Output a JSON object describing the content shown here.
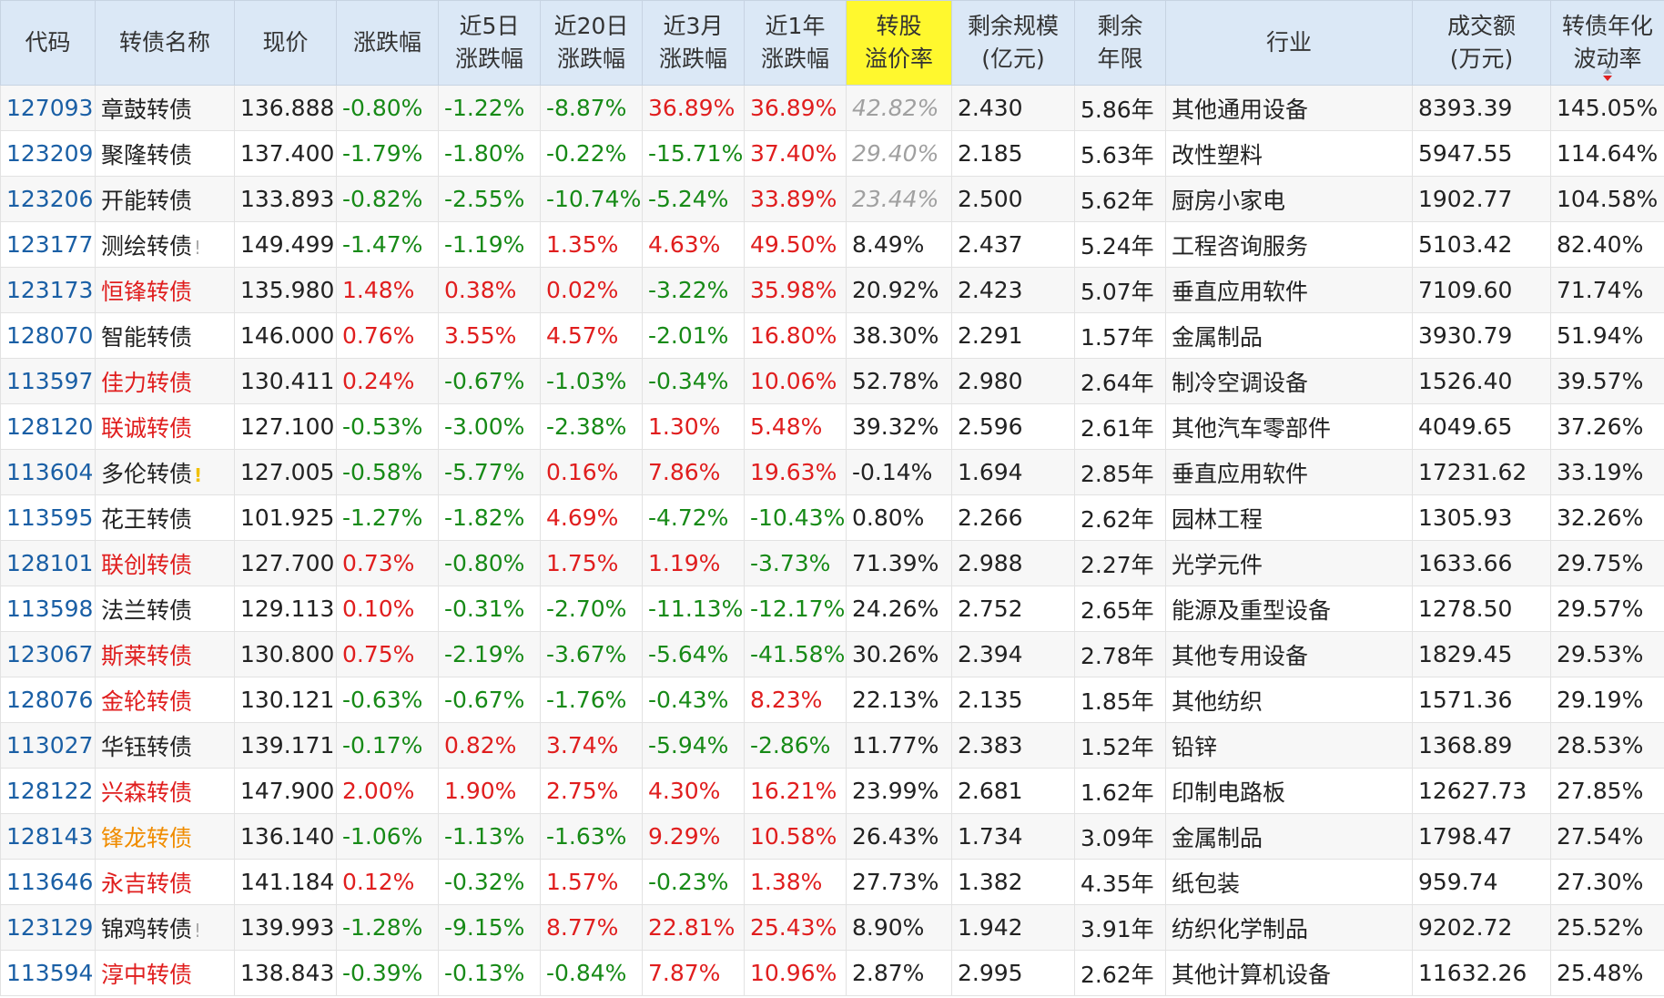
{
  "headers": [
    "代码",
    "转债名称",
    "现价",
    "涨跌幅",
    "近5日\n涨跌幅",
    "近20日\n涨跌幅",
    "近3月\n涨跌幅",
    "近1年\n涨跌幅",
    "转股\n溢价率",
    "剩余规模\n(亿元)",
    "剩余\n年限",
    "行业",
    "成交额\n(万元)",
    "转债年化\n波动率"
  ],
  "colors": {
    "up": "#e01e1e",
    "down": "#178a17",
    "header_bg": "#dbe8f6",
    "highlight": "#fff82e",
    "code": "#1a5fa5"
  },
  "rows": [
    {
      "code": "127093",
      "name": "章鼓转债",
      "name_color": "",
      "mark": "",
      "mark_color": "",
      "price": "136.888",
      "chg": "-0.80%",
      "chg5": "-1.22%",
      "chg20": "-8.87%",
      "chg3m": "36.89%",
      "chg1y": "36.89%",
      "premium": "42.82%",
      "premium_grey": true,
      "scale": "2.430",
      "years": "5.86年",
      "industry": "其他通用设备",
      "volume": "8393.39",
      "vol": "145.05%"
    },
    {
      "code": "123209",
      "name": "聚隆转债",
      "name_color": "",
      "mark": "",
      "mark_color": "",
      "price": "137.400",
      "chg": "-1.79%",
      "chg5": "-1.80%",
      "chg20": "-0.22%",
      "chg3m": "-15.71%",
      "chg1y": "37.40%",
      "premium": "29.40%",
      "premium_grey": true,
      "scale": "2.185",
      "years": "5.63年",
      "industry": "改性塑料",
      "volume": "5947.55",
      "vol": "114.64%"
    },
    {
      "code": "123206",
      "name": "开能转债",
      "name_color": "",
      "mark": "",
      "mark_color": "",
      "price": "133.893",
      "chg": "-0.82%",
      "chg5": "-2.55%",
      "chg20": "-10.74%",
      "chg3m": "-5.24%",
      "chg1y": "33.89%",
      "premium": "23.44%",
      "premium_grey": true,
      "scale": "2.500",
      "years": "5.62年",
      "industry": "厨房小家电",
      "volume": "1902.77",
      "vol": "104.58%"
    },
    {
      "code": "123177",
      "name": "测绘转债",
      "name_color": "",
      "mark": "!",
      "mark_color": "grey",
      "price": "149.499",
      "chg": "-1.47%",
      "chg5": "-1.19%",
      "chg20": "1.35%",
      "chg3m": "4.63%",
      "chg1y": "49.50%",
      "premium": "8.49%",
      "premium_grey": false,
      "scale": "2.437",
      "years": "5.24年",
      "industry": "工程咨询服务",
      "volume": "5103.42",
      "vol": "82.40%"
    },
    {
      "code": "123173",
      "name": "恒锋转债",
      "name_color": "red",
      "mark": "",
      "mark_color": "",
      "price": "135.980",
      "chg": "1.48%",
      "chg5": "0.38%",
      "chg20": "0.02%",
      "chg3m": "-3.22%",
      "chg1y": "35.98%",
      "premium": "20.92%",
      "premium_grey": false,
      "scale": "2.423",
      "years": "5.07年",
      "industry": "垂直应用软件",
      "volume": "7109.60",
      "vol": "71.74%"
    },
    {
      "code": "128070",
      "name": "智能转债",
      "name_color": "",
      "mark": "",
      "mark_color": "",
      "price": "146.000",
      "chg": "0.76%",
      "chg5": "3.55%",
      "chg20": "4.57%",
      "chg3m": "-2.01%",
      "chg1y": "16.80%",
      "premium": "38.30%",
      "premium_grey": false,
      "scale": "2.291",
      "years": "1.57年",
      "industry": "金属制品",
      "volume": "3930.79",
      "vol": "51.94%"
    },
    {
      "code": "113597",
      "name": "佳力转债",
      "name_color": "red",
      "mark": "",
      "mark_color": "",
      "price": "130.411",
      "chg": "0.24%",
      "chg5": "-0.67%",
      "chg20": "-1.03%",
      "chg3m": "-0.34%",
      "chg1y": "10.06%",
      "premium": "52.78%",
      "premium_grey": false,
      "scale": "2.980",
      "years": "2.64年",
      "industry": "制冷空调设备",
      "volume": "1526.40",
      "vol": "39.57%"
    },
    {
      "code": "128120",
      "name": "联诚转债",
      "name_color": "red",
      "mark": "",
      "mark_color": "",
      "price": "127.100",
      "chg": "-0.53%",
      "chg5": "-3.00%",
      "chg20": "-2.38%",
      "chg3m": "1.30%",
      "chg1y": "5.48%",
      "premium": "39.32%",
      "premium_grey": false,
      "scale": "2.596",
      "years": "2.61年",
      "industry": "其他汽车零部件",
      "volume": "4049.65",
      "vol": "37.26%"
    },
    {
      "code": "113604",
      "name": "多伦转债",
      "name_color": "",
      "mark": "!",
      "mark_color": "yellow",
      "price": "127.005",
      "chg": "-0.58%",
      "chg5": "-5.77%",
      "chg20": "0.16%",
      "chg3m": "7.86%",
      "chg1y": "19.63%",
      "premium": "-0.14%",
      "premium_grey": false,
      "scale": "1.694",
      "years": "2.85年",
      "industry": "垂直应用软件",
      "volume": "17231.62",
      "vol": "33.19%"
    },
    {
      "code": "113595",
      "name": "花王转债",
      "name_color": "",
      "mark": "",
      "mark_color": "",
      "price": "101.925",
      "chg": "-1.27%",
      "chg5": "-1.82%",
      "chg20": "4.69%",
      "chg3m": "-4.72%",
      "chg1y": "-10.43%",
      "premium": "0.80%",
      "premium_grey": false,
      "scale": "2.266",
      "years": "2.62年",
      "industry": "园林工程",
      "volume": "1305.93",
      "vol": "32.26%"
    },
    {
      "code": "128101",
      "name": "联创转债",
      "name_color": "red",
      "mark": "",
      "mark_color": "",
      "price": "127.700",
      "chg": "0.73%",
      "chg5": "-0.80%",
      "chg20": "1.75%",
      "chg3m": "1.19%",
      "chg1y": "-3.73%",
      "premium": "71.39%",
      "premium_grey": false,
      "scale": "2.988",
      "years": "2.27年",
      "industry": "光学元件",
      "volume": "1633.66",
      "vol": "29.75%"
    },
    {
      "code": "113598",
      "name": "法兰转债",
      "name_color": "",
      "mark": "",
      "mark_color": "",
      "price": "129.113",
      "chg": "0.10%",
      "chg5": "-0.31%",
      "chg20": "-2.70%",
      "chg3m": "-11.13%",
      "chg1y": "-12.17%",
      "premium": "24.26%",
      "premium_grey": false,
      "scale": "2.752",
      "years": "2.65年",
      "industry": "能源及重型设备",
      "volume": "1278.50",
      "vol": "29.57%"
    },
    {
      "code": "123067",
      "name": "斯莱转债",
      "name_color": "red",
      "mark": "",
      "mark_color": "",
      "price": "130.800",
      "chg": "0.75%",
      "chg5": "-2.19%",
      "chg20": "-3.67%",
      "chg3m": "-5.64%",
      "chg1y": "-41.58%",
      "premium": "30.26%",
      "premium_grey": false,
      "scale": "2.394",
      "years": "2.78年",
      "industry": "其他专用设备",
      "volume": "1829.45",
      "vol": "29.53%"
    },
    {
      "code": "128076",
      "name": "金轮转债",
      "name_color": "red",
      "mark": "",
      "mark_color": "",
      "price": "130.121",
      "chg": "-0.63%",
      "chg5": "-0.67%",
      "chg20": "-1.76%",
      "chg3m": "-0.43%",
      "chg1y": "8.23%",
      "premium": "22.13%",
      "premium_grey": false,
      "scale": "2.135",
      "years": "1.85年",
      "industry": "其他纺织",
      "volume": "1571.36",
      "vol": "29.19%"
    },
    {
      "code": "113027",
      "name": "华钰转债",
      "name_color": "",
      "mark": "",
      "mark_color": "",
      "price": "139.171",
      "chg": "-0.17%",
      "chg5": "0.82%",
      "chg20": "3.74%",
      "chg3m": "-5.94%",
      "chg1y": "-2.86%",
      "premium": "11.77%",
      "premium_grey": false,
      "scale": "2.383",
      "years": "1.52年",
      "industry": "铅锌",
      "volume": "1368.89",
      "vol": "28.53%"
    },
    {
      "code": "128122",
      "name": "兴森转债",
      "name_color": "red",
      "mark": "",
      "mark_color": "",
      "price": "147.900",
      "chg": "2.00%",
      "chg5": "1.90%",
      "chg20": "2.75%",
      "chg3m": "4.30%",
      "chg1y": "16.21%",
      "premium": "23.99%",
      "premium_grey": false,
      "scale": "2.681",
      "years": "1.62年",
      "industry": "印制电路板",
      "volume": "12627.73",
      "vol": "27.85%"
    },
    {
      "code": "128143",
      "name": "锋龙转债",
      "name_color": "orange",
      "mark": "",
      "mark_color": "",
      "price": "136.140",
      "chg": "-1.06%",
      "chg5": "-1.13%",
      "chg20": "-1.63%",
      "chg3m": "9.29%",
      "chg1y": "10.58%",
      "premium": "26.43%",
      "premium_grey": false,
      "scale": "1.734",
      "years": "3.09年",
      "industry": "金属制品",
      "volume": "1798.47",
      "vol": "27.54%"
    },
    {
      "code": "113646",
      "name": "永吉转债",
      "name_color": "red",
      "mark": "",
      "mark_color": "",
      "price": "141.184",
      "chg": "0.12%",
      "chg5": "-0.32%",
      "chg20": "1.57%",
      "chg3m": "-0.23%",
      "chg1y": "1.38%",
      "premium": "27.73%",
      "premium_grey": false,
      "scale": "1.382",
      "years": "4.35年",
      "industry": "纸包装",
      "volume": "959.74",
      "vol": "27.30%"
    },
    {
      "code": "123129",
      "name": "锦鸡转债",
      "name_color": "",
      "mark": "!",
      "mark_color": "grey",
      "price": "139.993",
      "chg": "-1.28%",
      "chg5": "-9.15%",
      "chg20": "8.77%",
      "chg3m": "22.81%",
      "chg1y": "25.43%",
      "premium": "8.90%",
      "premium_grey": false,
      "scale": "1.942",
      "years": "3.91年",
      "industry": "纺织化学制品",
      "volume": "9202.72",
      "vol": "25.52%"
    },
    {
      "code": "113594",
      "name": "淳中转债",
      "name_color": "red",
      "mark": "",
      "mark_color": "",
      "price": "138.843",
      "chg": "-0.39%",
      "chg5": "-0.13%",
      "chg20": "-0.84%",
      "chg3m": "7.87%",
      "chg1y": "10.96%",
      "premium": "2.87%",
      "premium_grey": false,
      "scale": "2.995",
      "years": "2.62年",
      "industry": "其他计算机设备",
      "volume": "11632.26",
      "vol": "25.48%"
    }
  ]
}
